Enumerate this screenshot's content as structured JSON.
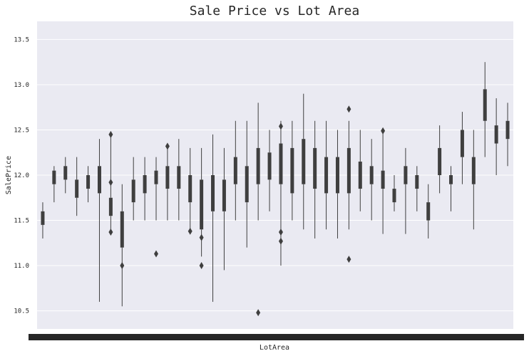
{
  "chart_data": {
    "type": "box",
    "title": "Sale Price vs Lot Area",
    "xlabel": "LotArea",
    "ylabel": "SalePrice",
    "ylim": [
      10.3,
      13.7
    ],
    "yticks": [
      "10.5",
      "11.0",
      "11.5",
      "12.0",
      "12.5",
      "13.0",
      "13.5"
    ],
    "grid": true,
    "x_tick_labels_overlapping": true,
    "box_color": "#3f3f3f",
    "background_color": "#eaeaf2",
    "boxes": [
      {
        "q1": 11.45,
        "q3": 11.6,
        "low": 11.3,
        "high": 11.7
      },
      {
        "q1": 11.9,
        "q3": 12.05,
        "low": 11.7,
        "high": 12.1
      },
      {
        "q1": 11.95,
        "q3": 12.1,
        "low": 11.8,
        "high": 12.2
      },
      {
        "q1": 11.75,
        "q3": 11.95,
        "low": 11.55,
        "high": 12.2
      },
      {
        "q1": 11.85,
        "q3": 12.0,
        "low": 11.7,
        "high": 12.1
      },
      {
        "q1": 11.8,
        "q3": 12.1,
        "low": 10.6,
        "high": 12.4
      },
      {
        "q1": 11.55,
        "q3": 11.75,
        "low": 11.35,
        "high": 12.45,
        "outliers": [
          11.92,
          11.37,
          12.45
        ]
      },
      {
        "q1": 11.2,
        "q3": 11.6,
        "low": 10.55,
        "high": 11.9,
        "outliers": [
          11.0
        ]
      },
      {
        "q1": 11.7,
        "q3": 11.95,
        "low": 11.5,
        "high": 12.2
      },
      {
        "q1": 11.8,
        "q3": 12.0,
        "low": 11.5,
        "high": 12.2
      },
      {
        "q1": 11.9,
        "q3": 12.05,
        "low": 11.5,
        "high": 12.2,
        "outliers": [
          11.13
        ]
      },
      {
        "q1": 11.85,
        "q3": 12.1,
        "low": 11.5,
        "high": 12.35,
        "outliers": [
          12.32
        ]
      },
      {
        "q1": 11.85,
        "q3": 12.1,
        "low": 11.5,
        "high": 12.4
      },
      {
        "q1": 11.7,
        "q3": 12.0,
        "low": 11.4,
        "high": 12.3,
        "outliers": [
          11.38
        ]
      },
      {
        "q1": 11.4,
        "q3": 11.95,
        "low": 11.1,
        "high": 12.3,
        "outliers": [
          11.31,
          11.0
        ]
      },
      {
        "q1": 11.6,
        "q3": 12.0,
        "low": 10.6,
        "high": 12.45
      },
      {
        "q1": 11.6,
        "q3": 11.95,
        "low": 10.95,
        "high": 12.3
      },
      {
        "q1": 11.9,
        "q3": 12.2,
        "low": 11.5,
        "high": 12.6
      },
      {
        "q1": 11.7,
        "q3": 12.1,
        "low": 11.2,
        "high": 12.6
      },
      {
        "q1": 11.9,
        "q3": 12.3,
        "low": 11.5,
        "high": 12.8,
        "outliers": [
          10.48
        ]
      },
      {
        "q1": 11.95,
        "q3": 12.25,
        "low": 11.6,
        "high": 12.5
      },
      {
        "q1": 11.9,
        "q3": 12.35,
        "low": 11.0,
        "high": 12.6,
        "outliers": [
          12.54,
          11.37,
          11.27
        ]
      },
      {
        "q1": 11.8,
        "q3": 12.3,
        "low": 11.5,
        "high": 12.6
      },
      {
        "q1": 11.9,
        "q3": 12.4,
        "low": 11.4,
        "high": 12.9
      },
      {
        "q1": 11.85,
        "q3": 12.3,
        "low": 11.3,
        "high": 12.6
      },
      {
        "q1": 11.8,
        "q3": 12.2,
        "low": 11.4,
        "high": 12.6
      },
      {
        "q1": 11.8,
        "q3": 12.2,
        "low": 11.3,
        "high": 12.5
      },
      {
        "q1": 11.8,
        "q3": 12.3,
        "low": 11.4,
        "high": 12.6,
        "outliers": [
          12.73,
          11.07
        ]
      },
      {
        "q1": 11.85,
        "q3": 12.15,
        "low": 11.6,
        "high": 12.5
      },
      {
        "q1": 11.9,
        "q3": 12.1,
        "low": 11.5,
        "high": 12.4
      },
      {
        "q1": 11.85,
        "q3": 12.05,
        "low": 11.35,
        "high": 12.5,
        "outliers": [
          12.49
        ]
      },
      {
        "q1": 11.7,
        "q3": 11.85,
        "low": 11.6,
        "high": 12.0
      },
      {
        "q1": 11.9,
        "q3": 12.1,
        "low": 11.35,
        "high": 12.3
      },
      {
        "q1": 11.85,
        "q3": 12.0,
        "low": 11.6,
        "high": 12.1
      },
      {
        "q1": 11.5,
        "q3": 11.7,
        "low": 11.3,
        "high": 11.9
      },
      {
        "q1": 12.0,
        "q3": 12.3,
        "low": 11.8,
        "high": 12.55
      },
      {
        "q1": 11.9,
        "q3": 12.0,
        "low": 11.6,
        "high": 12.1
      },
      {
        "q1": 12.2,
        "q3": 12.5,
        "low": 11.9,
        "high": 12.7
      },
      {
        "q1": 11.9,
        "q3": 12.2,
        "low": 11.4,
        "high": 12.5
      },
      {
        "q1": 12.6,
        "q3": 12.95,
        "low": 12.2,
        "high": 13.25
      },
      {
        "q1": 12.35,
        "q3": 12.55,
        "low": 12.0,
        "high": 12.85
      },
      {
        "q1": 12.4,
        "q3": 12.6,
        "low": 12.1,
        "high": 12.8
      }
    ]
  }
}
